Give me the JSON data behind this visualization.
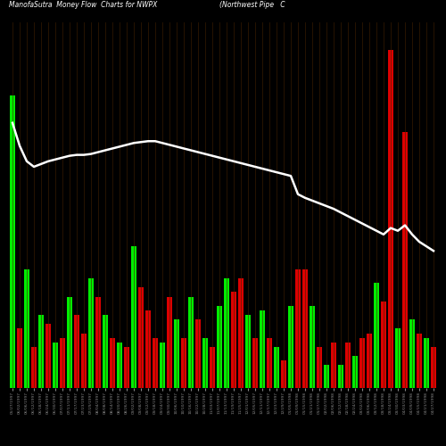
{
  "title_left": "ManofaSutra  Money Flow  Charts for NWPX",
  "title_right": "(Northwest Pipe   C",
  "background_color": "#000000",
  "line_color": "#ffffff",
  "green_color": "#00ee00",
  "red_color": "#dd0000",
  "grid_color": "#442200",
  "n_bars": 60,
  "bar_heights": [
    320,
    65,
    130,
    45,
    80,
    70,
    50,
    55,
    100,
    80,
    60,
    120,
    100,
    80,
    55,
    50,
    45,
    155,
    110,
    85,
    55,
    50,
    100,
    75,
    55,
    100,
    75,
    55,
    45,
    90,
    120,
    105,
    120,
    80,
    55,
    85,
    55,
    45,
    30,
    90,
    130,
    130,
    90,
    45,
    25,
    50,
    25,
    50,
    35,
    55,
    60,
    115,
    95,
    370,
    65,
    280,
    75,
    60,
    55,
    45
  ],
  "bar_colors": [
    "green",
    "red",
    "green",
    "red",
    "green",
    "red",
    "green",
    "red",
    "green",
    "red",
    "red",
    "green",
    "red",
    "green",
    "red",
    "green",
    "red",
    "green",
    "red",
    "red",
    "red",
    "green",
    "red",
    "green",
    "red",
    "green",
    "red",
    "green",
    "red",
    "green",
    "green",
    "red",
    "red",
    "green",
    "red",
    "green",
    "red",
    "green",
    "red",
    "green",
    "red",
    "red",
    "green",
    "red",
    "green",
    "red",
    "green",
    "red",
    "green",
    "red",
    "red",
    "green",
    "red",
    "red",
    "green",
    "red",
    "green",
    "red",
    "green",
    "red"
  ],
  "line_values": [
    290,
    265,
    248,
    242,
    245,
    248,
    250,
    252,
    254,
    255,
    255,
    256,
    258,
    260,
    262,
    264,
    266,
    268,
    269,
    270,
    270,
    268,
    266,
    264,
    262,
    260,
    258,
    256,
    254,
    252,
    250,
    248,
    246,
    244,
    242,
    240,
    238,
    236,
    234,
    232,
    212,
    208,
    205,
    202,
    199,
    196,
    192,
    188,
    184,
    180,
    176,
    172,
    168,
    175,
    172,
    178,
    168,
    160,
    155,
    150
  ],
  "xlabels": [
    "05/27/1997",
    "06/02/1997",
    "06/06/1997",
    "06/12/1997",
    "06/18/1997",
    "06/24/1997",
    "06/30/1997",
    "07/07/1997",
    "07/11/1997",
    "07/17/1997",
    "07/23/1997",
    "07/29/1997",
    "08/04/1997",
    "08/08/1997",
    "08/14/1997",
    "08/20/1997",
    "08/26/1997",
    "09/02/1997",
    "09/08/1997",
    "09/12/1997",
    "09/18/1997",
    "09/24/1997",
    "09/30/1997",
    "10/06/1997",
    "10/10/1997",
    "10/16/1997",
    "10/22/1997",
    "10/28/1997",
    "11/03/1997",
    "11/07/1997",
    "11/13/1997",
    "11/19/1997",
    "11/25/1997",
    "12/01/1997",
    "12/05/1997",
    "12/11/1997",
    "12/17/1997",
    "12/23/1997",
    "12/29/1997",
    "01/05/1998",
    "01/09/1998",
    "01/15/1998",
    "01/21/1998",
    "01/27/1998",
    "02/02/1998",
    "02/06/1998",
    "02/12/1998",
    "02/18/1998",
    "02/24/1998",
    "03/02/1998",
    "03/06/1998",
    "03/12/1998",
    "03/18/1998",
    "03/24/1998",
    "03/30/1998",
    "04/03/1998",
    "04/09/1998",
    "04/15/1998",
    "04/21/1998",
    "04/27/1998"
  ]
}
